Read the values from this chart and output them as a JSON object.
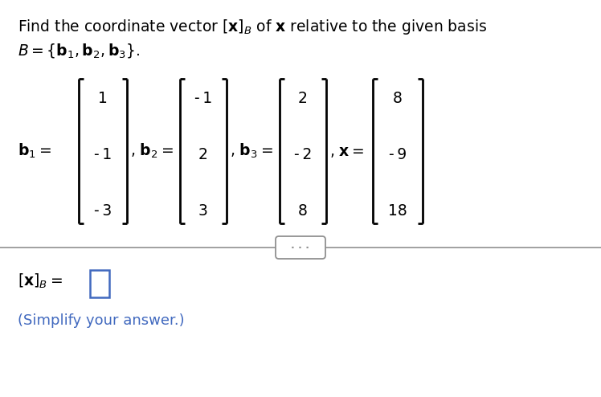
{
  "background_color": "#ffffff",
  "text_color": "#000000",
  "blue_color": "#4169BF",
  "gray_color": "#909090",
  "b1": [
    "1",
    "- 1",
    "- 3"
  ],
  "b2": [
    "- 1",
    "2",
    "3"
  ],
  "b3": [
    "2",
    "- 2",
    "8"
  ],
  "x_vec": [
    "8",
    "- 9",
    "18"
  ],
  "simplify_text": "(Simplify your answer.)"
}
